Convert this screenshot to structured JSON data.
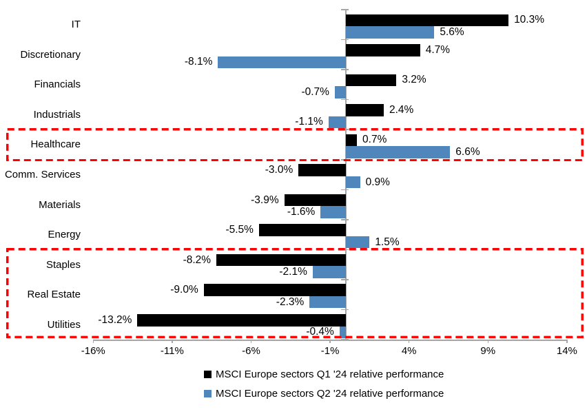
{
  "chart_data": {
    "type": "bar",
    "orientation": "horizontal",
    "title": "",
    "categories": [
      "IT",
      "Discretionary",
      "Financials",
      "Industrials",
      "Healthcare",
      "Comm. Services",
      "Materials",
      "Energy",
      "Staples",
      "Real Estate",
      "Utilities"
    ],
    "series": [
      {
        "name": "MSCI Europe sectors Q1 '24 relative performance",
        "color": "#000000",
        "values": [
          10.3,
          4.7,
          3.2,
          2.4,
          0.7,
          -3.0,
          -3.9,
          -5.5,
          -8.2,
          -9.0,
          -13.2
        ]
      },
      {
        "name": "MSCI Europe sectors Q2 '24 relative performance",
        "color": "#4F86BC",
        "values": [
          5.6,
          -8.1,
          -0.7,
          -1.1,
          6.6,
          0.9,
          -1.6,
          1.5,
          -2.1,
          -2.3,
          -0.4
        ]
      }
    ],
    "data_label_format": "one-decimal-percent",
    "x_ticks": [
      {
        "value": -16,
        "label": "-16%"
      },
      {
        "value": -11,
        "label": "-11%"
      },
      {
        "value": -6,
        "label": "-6%"
      },
      {
        "value": -1,
        "label": "-1%"
      },
      {
        "value": 4,
        "label": "4%"
      },
      {
        "value": 9,
        "label": "9%"
      },
      {
        "value": 14,
        "label": "14%"
      }
    ],
    "xlim": [
      -16,
      14
    ],
    "grid": false,
    "legend_position": "bottom",
    "axis_color": "#A6A6A6",
    "highlight_color": "#FF0000",
    "highlights": [
      {
        "name": "healthcare-highlight",
        "from_category": "Healthcare",
        "to_category": "Healthcare"
      },
      {
        "name": "staples-to-utilities-highlight",
        "from_category": "Staples",
        "to_category": "Utilities"
      }
    ]
  }
}
